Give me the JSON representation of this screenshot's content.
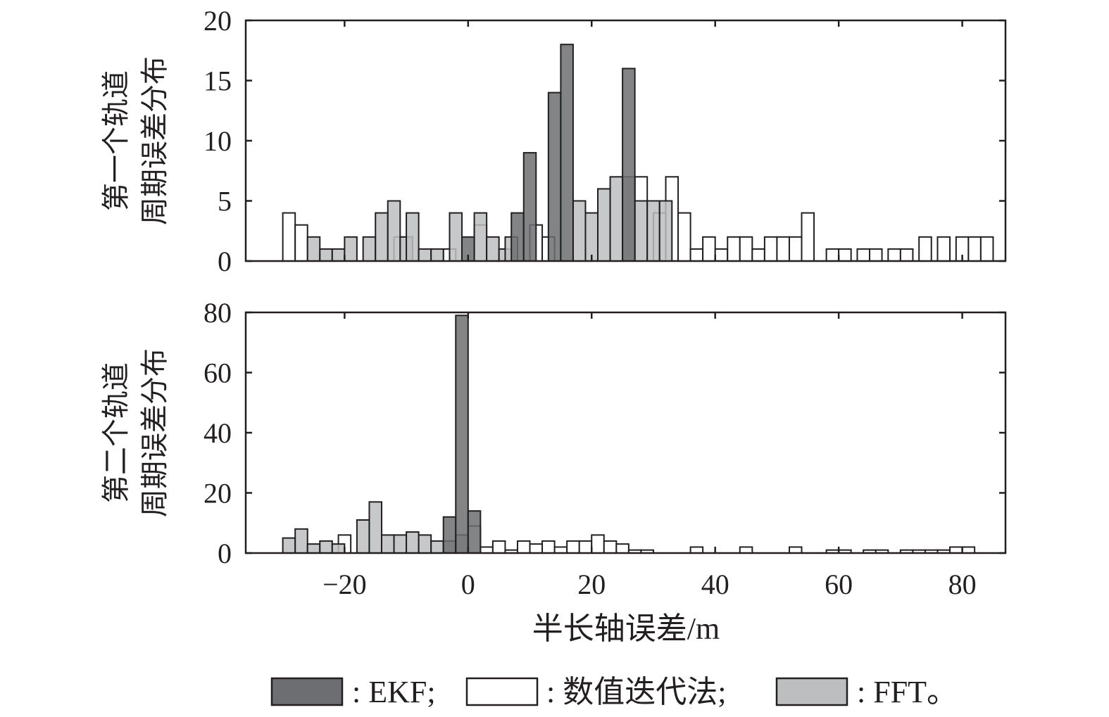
{
  "chart_data": [
    {
      "type": "bar",
      "ylabel_lines": [
        "第一个轨道",
        "周期误差分布"
      ],
      "xlim": [
        -36,
        87
      ],
      "ylim": [
        0,
        20
      ],
      "y_ticks": [
        "0",
        "5",
        "10",
        "15",
        "20"
      ],
      "bin_width": 2,
      "series": [
        {
          "name": "EKF",
          "bars": [
            {
              "x": 0,
              "y": 2
            },
            {
              "x": 8,
              "y": 4
            },
            {
              "x": 10,
              "y": 9
            },
            {
              "x": 14,
              "y": 14
            },
            {
              "x": 16,
              "y": 18
            },
            {
              "x": 26,
              "y": 16
            }
          ]
        },
        {
          "name": "数值迭代法",
          "bars": [
            {
              "x": -29,
              "y": 4
            },
            {
              "x": -27,
              "y": 3
            },
            {
              "x": -11,
              "y": 2
            },
            {
              "x": -3,
              "y": 1
            },
            {
              "x": 2,
              "y": 3
            },
            {
              "x": 11,
              "y": 3
            },
            {
              "x": 13,
              "y": 2
            },
            {
              "x": 28,
              "y": 7
            },
            {
              "x": 30,
              "y": 5
            },
            {
              "x": 31,
              "y": 4
            },
            {
              "x": 33,
              "y": 7
            },
            {
              "x": 35,
              "y": 4
            },
            {
              "x": 37,
              "y": 1
            },
            {
              "x": 39,
              "y": 2
            },
            {
              "x": 41,
              "y": 1
            },
            {
              "x": 43,
              "y": 2
            },
            {
              "x": 45,
              "y": 2
            },
            {
              "x": 47,
              "y": 1
            },
            {
              "x": 49,
              "y": 2
            },
            {
              "x": 51,
              "y": 2
            },
            {
              "x": 53,
              "y": 2
            },
            {
              "x": 55,
              "y": 4
            },
            {
              "x": 59,
              "y": 1
            },
            {
              "x": 61,
              "y": 1
            },
            {
              "x": 64,
              "y": 1
            },
            {
              "x": 66,
              "y": 1
            },
            {
              "x": 69,
              "y": 1
            },
            {
              "x": 71,
              "y": 1
            },
            {
              "x": 74,
              "y": 2
            },
            {
              "x": 77,
              "y": 2
            },
            {
              "x": 80,
              "y": 2
            },
            {
              "x": 82,
              "y": 2
            },
            {
              "x": 84,
              "y": 2
            }
          ]
        },
        {
          "name": "FFT",
          "bars": [
            {
              "x": -25,
              "y": 2
            },
            {
              "x": -23,
              "y": 1
            },
            {
              "x": -21,
              "y": 1
            },
            {
              "x": -19,
              "y": 2
            },
            {
              "x": -16,
              "y": 2
            },
            {
              "x": -14,
              "y": 4
            },
            {
              "x": -12,
              "y": 5
            },
            {
              "x": -10,
              "y": 2
            },
            {
              "x": -9,
              "y": 4
            },
            {
              "x": -7,
              "y": 1
            },
            {
              "x": -5,
              "y": 1
            },
            {
              "x": -2,
              "y": 4
            },
            {
              "x": 2,
              "y": 4
            },
            {
              "x": 4,
              "y": 2
            },
            {
              "x": 6,
              "y": 1
            },
            {
              "x": 7,
              "y": 2
            },
            {
              "x": 18,
              "y": 5
            },
            {
              "x": 20,
              "y": 4
            },
            {
              "x": 22,
              "y": 6
            },
            {
              "x": 24,
              "y": 7
            },
            {
              "x": 26,
              "y": 7
            },
            {
              "x": 28,
              "y": 5
            },
            {
              "x": 30,
              "y": 5
            },
            {
              "x": 32,
              "y": 5
            }
          ]
        }
      ]
    },
    {
      "type": "bar",
      "ylabel_lines": [
        "第二个轨道",
        "周期误差分布"
      ],
      "xlabel": "半长轴误差/m",
      "xlim": [
        -36,
        87
      ],
      "ylim": [
        0,
        80
      ],
      "y_ticks": [
        "0",
        "20",
        "40",
        "60",
        "80"
      ],
      "x_ticks": [
        {
          "v": -20,
          "label": "−20"
        },
        {
          "v": 0,
          "label": "0"
        },
        {
          "v": 20,
          "label": "20"
        },
        {
          "v": 40,
          "label": "40"
        },
        {
          "v": 60,
          "label": "60"
        },
        {
          "v": 80,
          "label": "80"
        }
      ],
      "bin_width": 2,
      "series": [
        {
          "name": "EKF",
          "bars": [
            {
              "x": -3,
              "y": 12
            },
            {
              "x": -1,
              "y": 79
            },
            {
              "x": 1,
              "y": 14
            }
          ]
        },
        {
          "name": "数值迭代法",
          "bars": [
            {
              "x": -20,
              "y": 6
            },
            {
              "x": 1,
              "y": 9
            },
            {
              "x": 3,
              "y": 2
            },
            {
              "x": 5,
              "y": 4
            },
            {
              "x": 7,
              "y": 1
            },
            {
              "x": 9,
              "y": 4
            },
            {
              "x": 11,
              "y": 3
            },
            {
              "x": 13,
              "y": 4
            },
            {
              "x": 15,
              "y": 2
            },
            {
              "x": 17,
              "y": 4
            },
            {
              "x": 19,
              "y": 4
            },
            {
              "x": 21,
              "y": 6
            },
            {
              "x": 23,
              "y": 4
            },
            {
              "x": 25,
              "y": 3
            },
            {
              "x": 27,
              "y": 1
            },
            {
              "x": 29,
              "y": 1
            },
            {
              "x": 37,
              "y": 2
            },
            {
              "x": 45,
              "y": 2
            },
            {
              "x": 53,
              "y": 2
            },
            {
              "x": 59,
              "y": 1
            },
            {
              "x": 61,
              "y": 1
            },
            {
              "x": 65,
              "y": 1
            },
            {
              "x": 67,
              "y": 1
            },
            {
              "x": 71,
              "y": 1
            },
            {
              "x": 73,
              "y": 1
            },
            {
              "x": 75,
              "y": 1
            },
            {
              "x": 77,
              "y": 1
            },
            {
              "x": 79,
              "y": 2
            },
            {
              "x": 81,
              "y": 2
            }
          ]
        },
        {
          "name": "FFT",
          "bars": [
            {
              "x": -29,
              "y": 5
            },
            {
              "x": -27,
              "y": 8
            },
            {
              "x": -25,
              "y": 3
            },
            {
              "x": -23,
              "y": 4
            },
            {
              "x": -21,
              "y": 3
            },
            {
              "x": -17,
              "y": 11
            },
            {
              "x": -15,
              "y": 17
            },
            {
              "x": -13,
              "y": 6
            },
            {
              "x": -11,
              "y": 6
            },
            {
              "x": -9,
              "y": 7
            },
            {
              "x": -7,
              "y": 6
            },
            {
              "x": -5,
              "y": 4
            },
            {
              "x": -3,
              "y": 4
            },
            {
              "x": -1,
              "y": 6
            }
          ]
        }
      ]
    }
  ],
  "colors": {
    "EKF": "#6d6e71",
    "数值迭代法": "#ffffff",
    "FFT": "#bcbec0",
    "axis": "#231f20"
  },
  "legend": {
    "items": [
      {
        "key": "EKF",
        "label": ": EKF;"
      },
      {
        "key": "数值迭代法",
        "label": ": 数值迭代法;"
      },
      {
        "key": "FFT",
        "label": ": FFT。"
      }
    ]
  }
}
